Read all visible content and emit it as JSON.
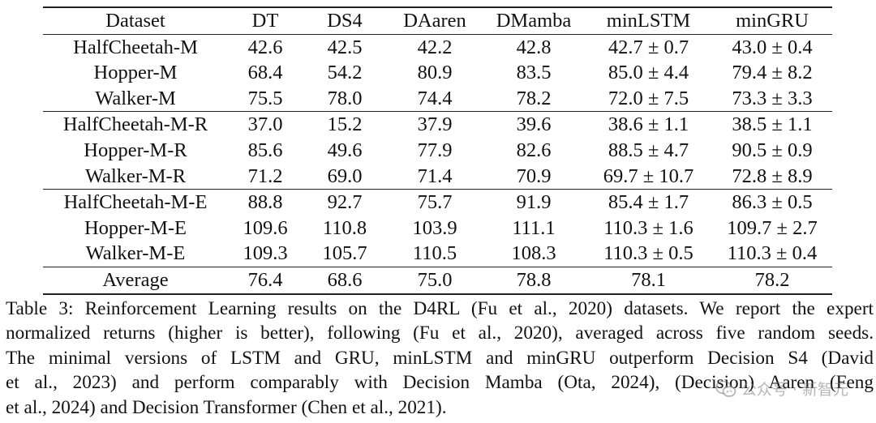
{
  "table": {
    "headers": [
      "Dataset",
      "DT",
      "DS4",
      "DAaren",
      "DMamba",
      "minLSTM",
      "minGRU"
    ],
    "groups": [
      {
        "rows": [
          [
            "HalfCheetah-M",
            "42.6",
            "42.5",
            "42.2",
            "42.8",
            "42.7 ± 0.7",
            "43.0 ± 0.4"
          ],
          [
            "Hopper-M",
            "68.4",
            "54.2",
            "80.9",
            "83.5",
            "85.0 ± 4.4",
            "79.4 ± 8.2"
          ],
          [
            "Walker-M",
            "75.5",
            "78.0",
            "74.4",
            "78.2",
            "72.0 ± 7.5",
            "73.3 ± 3.3"
          ]
        ]
      },
      {
        "rows": [
          [
            "HalfCheetah-M-R",
            "37.0",
            "15.2",
            "37.9",
            "39.6",
            "38.6 ± 1.1",
            "38.5 ± 1.1"
          ],
          [
            "Hopper-M-R",
            "85.6",
            "49.6",
            "77.9",
            "82.6",
            "88.5 ± 4.7",
            "90.5 ± 0.9"
          ],
          [
            "Walker-M-R",
            "71.2",
            "69.0",
            "71.4",
            "70.9",
            "69.7 ± 10.7",
            "72.8 ± 8.9"
          ]
        ]
      },
      {
        "rows": [
          [
            "HalfCheetah-M-E",
            "88.8",
            "92.7",
            "75.7",
            "91.9",
            "85.4 ± 1.7",
            "86.3 ± 0.5"
          ],
          [
            "Hopper-M-E",
            "109.6",
            "110.8",
            "103.9",
            "111.1",
            "110.3 ± 1.6",
            "109.7 ± 2.7"
          ],
          [
            "Walker-M-E",
            "109.3",
            "105.7",
            "110.5",
            "108.3",
            "110.3 ± 0.5",
            "110.3 ± 0.4"
          ]
        ]
      }
    ],
    "average": [
      "Average",
      "76.4",
      "68.6",
      "75.0",
      "78.8",
      "78.1",
      "78.2"
    ]
  },
  "caption": {
    "lines": [
      "Table 3: Reinforcement Learning results on the D4RL (Fu et al., 2020) datasets. We report the expert",
      "normalized returns (higher is better), following (Fu et al., 2020), averaged across five random seeds.",
      "The minimal versions of LSTM and GRU, minLSTM and minGRU outperform Decision S4 (David",
      "et al., 2023) and perform comparably with Decision Mamba (Ota, 2024), (Decision) Aaren (Feng",
      "et al., 2024) and Decision Transformer (Chen et al., 2021)."
    ]
  },
  "watermark": {
    "text": "公众号 · 新智元",
    "icon": "wechat-icon"
  }
}
